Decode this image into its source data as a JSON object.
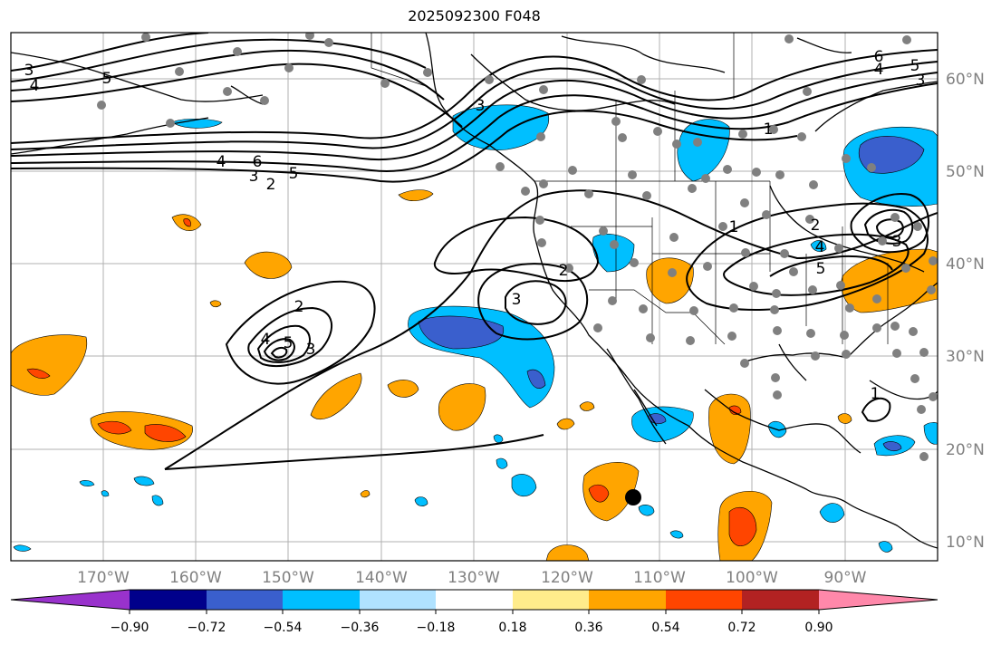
{
  "title": "2025092300 F048",
  "map": {
    "lat_labels": [
      "60°N",
      "50°N",
      "40°N",
      "30°N",
      "20°N",
      "10°N"
    ],
    "lon_labels": [
      "170°W",
      "160°W",
      "150°W",
      "140°W",
      "130°W",
      "120°W",
      "110°W",
      "100°W",
      "90°W"
    ],
    "contour_labels": [
      "3",
      "4",
      "5",
      "4",
      "6",
      "3",
      "2",
      "5",
      "2",
      "3",
      "4",
      "5",
      "3",
      "2",
      "3",
      "1",
      "1",
      "2",
      "3",
      "4",
      "5",
      "6",
      "5",
      "4",
      "3",
      "1"
    ]
  },
  "colorbar": {
    "tick_labels": [
      "−0.90",
      "−0.72",
      "−0.54",
      "−0.36",
      "−0.18",
      "0.18",
      "0.36",
      "0.54",
      "0.72",
      "0.90"
    ],
    "colors": [
      "#9932cc",
      "#00008b",
      "#3a5fcd",
      "#00bfff",
      "#b0e2ff",
      "#ffffff",
      "#ffec8b",
      "#ffa500",
      "#ff4500",
      "#b22222",
      "#ff88aa"
    ]
  }
}
